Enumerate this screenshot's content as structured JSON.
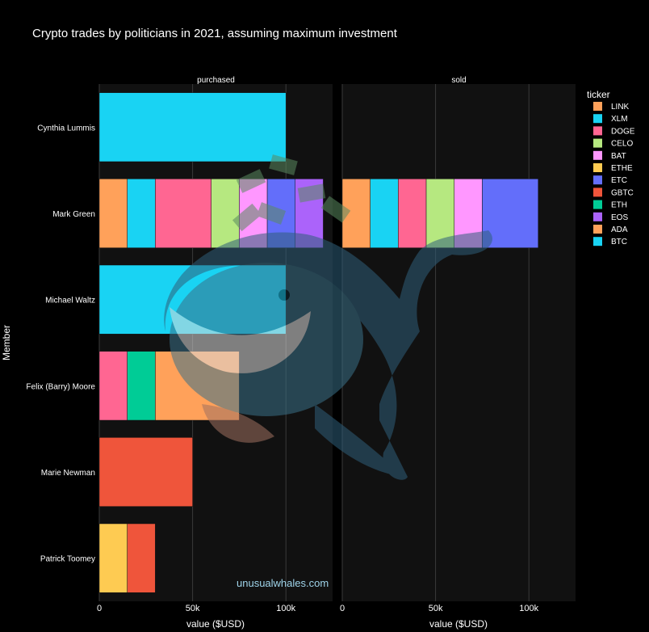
{
  "chart_data": {
    "type": "bar",
    "orientation": "horizontal",
    "barmode": "stack",
    "title": "Crypto trades by politicians in 2021, assuming maximum investment",
    "ylabel": "Member",
    "xlabel": "value ($USD)",
    "legend_title": "ticker",
    "legend_position": "right",
    "grid": true,
    "xlim": [
      0,
      125000
    ],
    "x_ticks": [
      0,
      50000,
      100000
    ],
    "x_tick_labels": [
      "0",
      "50k",
      "100k"
    ],
    "members": [
      "Cynthia Lummis",
      "Mark Green",
      "Michael Waltz",
      "Felix (Barry) Moore",
      "Marie Newman",
      "Patrick Toomey"
    ],
    "tickers": [
      {
        "name": "LINK",
        "color": "#FFA15A"
      },
      {
        "name": "XLM",
        "color": "#19D3F3"
      },
      {
        "name": "DOGE",
        "color": "#FF6692"
      },
      {
        "name": "CELO",
        "color": "#B6E880"
      },
      {
        "name": "BAT",
        "color": "#FF97FF"
      },
      {
        "name": "ETHE",
        "color": "#FECB52"
      },
      {
        "name": "ETC",
        "color": "#636EFA"
      },
      {
        "name": "GBTC",
        "color": "#EF553B"
      },
      {
        "name": "ETH",
        "color": "#00CC96"
      },
      {
        "name": "EOS",
        "color": "#AB63FA"
      },
      {
        "name": "ADA",
        "color": "#FFA15A"
      },
      {
        "name": "BTC",
        "color": "#19D3F3"
      }
    ],
    "facets": [
      {
        "name": "purchased",
        "bars": [
          {
            "member": "Cynthia Lummis",
            "segments": [
              {
                "ticker": "BTC",
                "value": 100000
              }
            ]
          },
          {
            "member": "Mark Green",
            "segments": [
              {
                "ticker": "LINK",
                "value": 15000
              },
              {
                "ticker": "XLM",
                "value": 15000
              },
              {
                "ticker": "DOGE",
                "value": 30000
              },
              {
                "ticker": "CELO",
                "value": 15000
              },
              {
                "ticker": "BAT",
                "value": 15000
              },
              {
                "ticker": "ETC",
                "value": 15000
              },
              {
                "ticker": "EOS",
                "value": 15000
              }
            ]
          },
          {
            "member": "Michael Waltz",
            "segments": [
              {
                "ticker": "BTC",
                "value": 100000
              }
            ]
          },
          {
            "member": "Felix (Barry) Moore",
            "segments": [
              {
                "ticker": "DOGE",
                "value": 15000
              },
              {
                "ticker": "ETH",
                "value": 15000
              },
              {
                "ticker": "ADA",
                "value": 45000
              }
            ]
          },
          {
            "member": "Marie Newman",
            "segments": [
              {
                "ticker": "GBTC",
                "value": 50000
              }
            ]
          },
          {
            "member": "Patrick Toomey",
            "segments": [
              {
                "ticker": "ETHE",
                "value": 15000
              },
              {
                "ticker": "GBTC",
                "value": 15000
              }
            ]
          }
        ]
      },
      {
        "name": "sold",
        "bars": [
          {
            "member": "Mark Green",
            "segments": [
              {
                "ticker": "LINK",
                "value": 15000
              },
              {
                "ticker": "XLM",
                "value": 15000
              },
              {
                "ticker": "DOGE",
                "value": 15000
              },
              {
                "ticker": "CELO",
                "value": 15000
              },
              {
                "ticker": "BAT",
                "value": 15000
              },
              {
                "ticker": "ETC",
                "value": 30000
              }
            ]
          }
        ]
      }
    ],
    "watermark_text": "unusualwhales.com"
  }
}
